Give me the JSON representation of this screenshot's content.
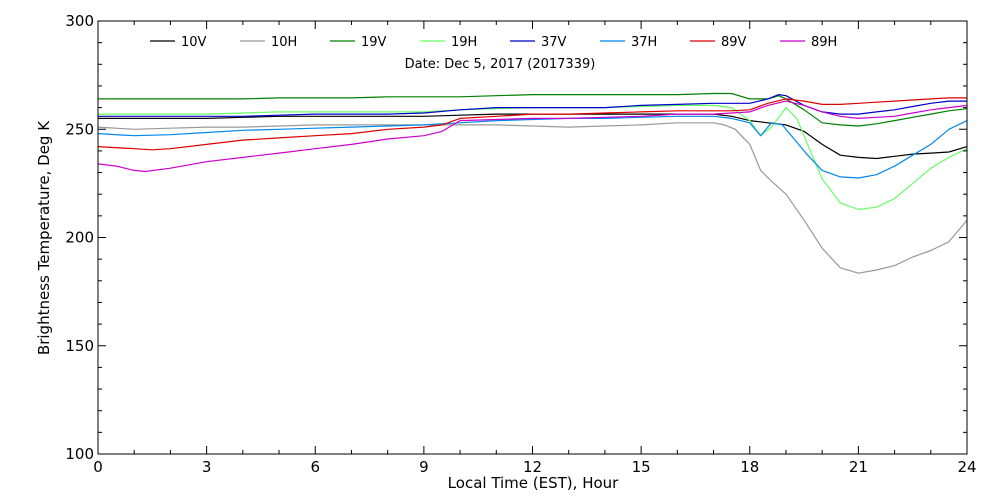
{
  "chart_data": {
    "type": "line",
    "subtitle": "Date: Dec  5, 2017 (2017339)",
    "xlabel": "Local Time (EST), Hour",
    "ylabel": "Brightness Temperature, Deg K",
    "xlim": [
      0,
      24
    ],
    "ylim": [
      100,
      300
    ],
    "xticks": [
      0,
      3,
      6,
      9,
      12,
      15,
      18,
      21,
      24
    ],
    "yticks": [
      100,
      150,
      200,
      250,
      300
    ],
    "grid": false,
    "legend_position": "top",
    "series": [
      {
        "name": "10V",
        "color": "#000000",
        "x": [
          0,
          1,
          2,
          3,
          4,
          5,
          6,
          7,
          8,
          9,
          10,
          11,
          12,
          13,
          14,
          15,
          16,
          17,
          17.5,
          18,
          18.5,
          19,
          19.5,
          20,
          20.5,
          21,
          21.5,
          22,
          22.5,
          23,
          23.5,
          24
        ],
        "y": [
          255,
          255,
          255,
          255,
          255.5,
          256,
          256,
          256,
          256,
          256,
          256.5,
          257,
          257,
          257,
          257,
          257,
          257,
          257,
          256,
          254,
          253,
          252,
          249,
          243,
          238,
          237,
          236.5,
          237.5,
          238.5,
          239,
          239.5,
          242
        ]
      },
      {
        "name": "10H",
        "color": "#999999",
        "x": [
          0,
          1,
          2,
          3,
          4,
          5,
          6,
          7,
          8,
          9,
          10,
          11,
          12,
          13,
          14,
          15,
          16,
          17,
          17.3,
          17.6,
          18,
          18.3,
          18.6,
          19,
          19.5,
          20,
          20.5,
          21,
          21.5,
          22,
          22.5,
          23,
          23.5,
          24
        ],
        "y": [
          251,
          250,
          250.5,
          251,
          251,
          251.5,
          252,
          252,
          252,
          252,
          252,
          252,
          251.5,
          251,
          251.5,
          252,
          253,
          253,
          252,
          250,
          243,
          231,
          226,
          220,
          208,
          195,
          186,
          183.5,
          185,
          187,
          191,
          194,
          198,
          208
        ]
      },
      {
        "name": "19V",
        "color": "#008000",
        "x": [
          0,
          1,
          2,
          3,
          4,
          5,
          6,
          7,
          8,
          9,
          10,
          11,
          12,
          13,
          14,
          15,
          16,
          17,
          17.5,
          18,
          18.5,
          18.8,
          19,
          19.5,
          20,
          20.5,
          21,
          21.5,
          22,
          22.5,
          23,
          23.5,
          24
        ],
        "y": [
          264,
          264,
          264,
          264,
          264,
          264.5,
          264.5,
          264.5,
          265,
          265,
          265,
          265.5,
          266,
          266,
          266,
          266,
          266,
          266.5,
          266.5,
          264,
          264,
          265.5,
          264,
          259,
          253,
          252,
          251.5,
          252.5,
          254,
          255.5,
          257,
          258.5,
          259.5
        ]
      },
      {
        "name": "19H",
        "color": "#66ff66",
        "x": [
          0,
          1,
          2,
          3,
          4,
          5,
          6,
          7,
          8,
          9,
          10,
          11,
          12,
          13,
          14,
          15,
          16,
          17,
          17.5,
          18,
          18.3,
          18.6,
          19,
          19.3,
          19.6,
          20,
          20.5,
          21,
          21.5,
          22,
          22.5,
          23,
          23.5,
          24
        ],
        "y": [
          257,
          257,
          257,
          257,
          257.5,
          258,
          258,
          258,
          258,
          258,
          259,
          259.5,
          260,
          260,
          260,
          260.5,
          261,
          261,
          260,
          254,
          247,
          251,
          260,
          255,
          243,
          227,
          216,
          213,
          214,
          218,
          225,
          232,
          237,
          241
        ]
      },
      {
        "name": "37V",
        "color": "#0000cc",
        "x": [
          0,
          1,
          2,
          3,
          4,
          5,
          6,
          7,
          8,
          9,
          10,
          11,
          12,
          13,
          14,
          15,
          16,
          17,
          17.5,
          18,
          18.5,
          18.8,
          19,
          19.5,
          20,
          20.5,
          21,
          21.5,
          22,
          22.5,
          23,
          23.5,
          24
        ],
        "y": [
          256,
          256,
          256,
          256,
          256,
          256.5,
          257,
          257,
          257,
          257.5,
          259,
          260,
          260,
          260,
          260,
          261,
          261.5,
          262,
          262,
          262,
          264,
          266,
          265.5,
          261,
          258,
          257,
          257,
          258,
          259,
          260.5,
          262,
          263,
          263
        ]
      },
      {
        "name": "37H",
        "color": "#0088ee",
        "x": [
          0,
          1,
          2,
          3,
          4,
          5,
          6,
          7,
          8,
          9,
          10,
          11,
          12,
          13,
          14,
          15,
          16,
          17,
          17.5,
          18,
          18.3,
          18.6,
          18.9,
          19.2,
          19.6,
          20,
          20.5,
          21,
          21.5,
          22,
          22.5,
          23,
          23.5,
          24
        ],
        "y": [
          248,
          247,
          247.5,
          248.5,
          249.5,
          250,
          250.5,
          251,
          251.5,
          252,
          253,
          254,
          254.5,
          255,
          255,
          255.5,
          256,
          256,
          255,
          253,
          247,
          253,
          252,
          246,
          238,
          231,
          228,
          227.5,
          229,
          233,
          238,
          243,
          250,
          254
        ]
      },
      {
        "name": "89V",
        "color": "#dd0000",
        "x": [
          0,
          1,
          1.5,
          2,
          3,
          4,
          5,
          6,
          7,
          8,
          9,
          9.5,
          10,
          11,
          12,
          13,
          14,
          15,
          16,
          17,
          17.5,
          18,
          18.5,
          19,
          19.5,
          20,
          20.5,
          21,
          21.5,
          22,
          22.5,
          23,
          23.5,
          24
        ],
        "y": [
          242,
          241,
          240.5,
          241,
          243,
          245,
          246,
          247,
          248,
          250,
          251,
          252,
          255,
          256,
          257,
          257,
          257.5,
          258,
          258.5,
          258.5,
          258.5,
          259,
          262,
          264,
          263,
          261.5,
          261.5,
          262,
          262.5,
          263,
          263.5,
          264,
          264.5,
          264.5
        ]
      },
      {
        "name": "89H",
        "color": "#cc00cc",
        "x": [
          0,
          0.5,
          1,
          1.3,
          2,
          3,
          4,
          5,
          6,
          7,
          8,
          9,
          9.5,
          10,
          11,
          12,
          13,
          14,
          15,
          16,
          17,
          17.5,
          18,
          18.5,
          19,
          19.5,
          20,
          20.5,
          21,
          21.5,
          22,
          22.5,
          23,
          23.5,
          24
        ],
        "y": [
          234,
          233,
          231,
          230.5,
          232,
          235,
          237,
          239,
          241,
          243,
          245.5,
          247,
          249,
          254,
          254.5,
          255,
          255,
          255.5,
          256,
          257,
          257,
          257.5,
          258,
          261,
          263,
          261,
          258,
          256,
          255,
          255.5,
          256,
          257.5,
          259,
          260,
          261
        ]
      }
    ]
  }
}
